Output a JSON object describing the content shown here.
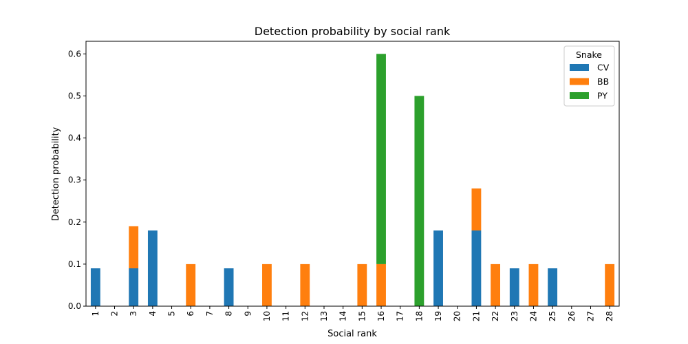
{
  "chart_data": {
    "type": "bar",
    "stacked": true,
    "title": "Detection probability by social rank",
    "xlabel": "Social rank",
    "ylabel": "Detection probability",
    "ylim": [
      0,
      0.63
    ],
    "yticks": [
      "0.0",
      "0.1",
      "0.2",
      "0.3",
      "0.4",
      "0.5",
      "0.6"
    ],
    "categories": [
      "1",
      "2",
      "3",
      "4",
      "5",
      "6",
      "7",
      "8",
      "9",
      "10",
      "11",
      "12",
      "13",
      "14",
      "15",
      "16",
      "17",
      "18",
      "19",
      "20",
      "21",
      "22",
      "23",
      "24",
      "25",
      "26",
      "27",
      "28"
    ],
    "series": [
      {
        "name": "CV",
        "color": "#1f77b4",
        "values": [
          0.09,
          0,
          0.09,
          0.18,
          0,
          0,
          0,
          0.09,
          0,
          0,
          0,
          0,
          0,
          0,
          0,
          0,
          0,
          0,
          0.18,
          0,
          0.18,
          0,
          0.09,
          0,
          0.09,
          0,
          0,
          0
        ]
      },
      {
        "name": "BB",
        "color": "#ff7f0e",
        "values": [
          0,
          0,
          0.1,
          0,
          0,
          0.1,
          0,
          0,
          0,
          0.1,
          0,
          0.1,
          0,
          0,
          0.1,
          0.1,
          0,
          0,
          0,
          0,
          0.1,
          0.1,
          0,
          0.1,
          0,
          0,
          0,
          0.1
        ]
      },
      {
        "name": "PY",
        "color": "#2ca02c",
        "values": [
          0,
          0,
          0,
          0,
          0,
          0,
          0,
          0,
          0,
          0,
          0,
          0,
          0,
          0,
          0,
          0.5,
          0,
          0.5,
          0,
          0,
          0,
          0,
          0,
          0,
          0,
          0,
          0,
          0
        ]
      }
    ],
    "legend": {
      "title": "Snake",
      "position": "top-right"
    },
    "grid": false
  }
}
